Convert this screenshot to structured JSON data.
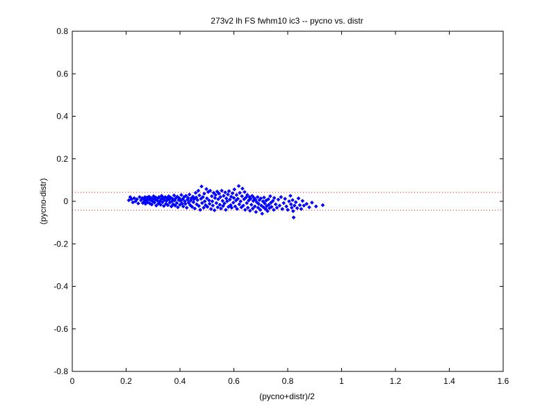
{
  "chart_data": {
    "type": "scatter",
    "title": "273v2 lh FS fwhm10 ic3 -- pycno vs. distr",
    "xlabel": "(pycno+distr)/2",
    "ylabel": "(pycno-distr)",
    "xlim": [
      0,
      1.6
    ],
    "ylim": [
      -0.8,
      0.8
    ],
    "x_ticks": [
      "0",
      "0.2",
      "0.4",
      "0.6",
      "0.8",
      "1",
      "1.2",
      "1.4",
      "1.6"
    ],
    "y_ticks": [
      "-0.8",
      "-0.6",
      "-0.4",
      "-0.2",
      "0",
      "0.2",
      "0.4",
      "0.6",
      "0.8"
    ],
    "grid": false,
    "marker_color": "#0000ff",
    "reference_lines": {
      "color": "#ff0000",
      "style": "dotted",
      "y": [
        0.042,
        -0.042
      ]
    },
    "series": [
      {
        "points": [
          [
            0.21,
            0.005
          ],
          [
            0.215,
            0.02
          ],
          [
            0.22,
            0.01
          ],
          [
            0.225,
            -0.005
          ],
          [
            0.23,
            0.015
          ],
          [
            0.235,
            0.0
          ],
          [
            0.24,
            0.01
          ],
          [
            0.245,
            -0.01
          ],
          [
            0.25,
            0.02
          ],
          [
            0.255,
            0.005
          ],
          [
            0.26,
            0.015
          ],
          [
            0.262,
            -0.008
          ],
          [
            0.265,
            0.012
          ],
          [
            0.268,
            0.0
          ],
          [
            0.27,
            0.02
          ],
          [
            0.272,
            -0.012
          ],
          [
            0.275,
            0.008
          ],
          [
            0.278,
            0.018
          ],
          [
            0.28,
            -0.004
          ],
          [
            0.283,
            0.01
          ],
          [
            0.285,
            0.022
          ],
          [
            0.288,
            -0.01
          ],
          [
            0.29,
            0.006
          ],
          [
            0.292,
            0.016
          ],
          [
            0.295,
            -0.015
          ],
          [
            0.298,
            0.0
          ],
          [
            0.3,
            0.012
          ],
          [
            0.302,
            0.024
          ],
          [
            0.305,
            -0.006
          ],
          [
            0.308,
            0.008
          ],
          [
            0.31,
            0.018
          ],
          [
            0.312,
            -0.02
          ],
          [
            0.315,
            0.004
          ],
          [
            0.318,
            0.014
          ],
          [
            0.32,
            -0.01
          ],
          [
            0.322,
            0.02
          ],
          [
            0.325,
            0.0
          ],
          [
            0.328,
            -0.016
          ],
          [
            0.33,
            0.01
          ],
          [
            0.332,
            0.026
          ],
          [
            0.335,
            -0.004
          ],
          [
            0.338,
            0.016
          ],
          [
            0.34,
            -0.022
          ],
          [
            0.342,
            0.006
          ],
          [
            0.345,
            0.02
          ],
          [
            0.348,
            -0.012
          ],
          [
            0.35,
            0.002
          ],
          [
            0.352,
            0.014
          ],
          [
            0.355,
            -0.018
          ],
          [
            0.358,
            0.024
          ],
          [
            0.36,
            0.008
          ],
          [
            0.362,
            -0.006
          ],
          [
            0.365,
            0.018
          ],
          [
            0.368,
            -0.024
          ],
          [
            0.37,
            0.0
          ],
          [
            0.372,
            0.012
          ],
          [
            0.375,
            -0.014
          ],
          [
            0.378,
            0.028
          ],
          [
            0.38,
            0.004
          ],
          [
            0.382,
            -0.02
          ],
          [
            0.385,
            0.016
          ],
          [
            0.388,
            -0.008
          ],
          [
            0.39,
            0.022
          ],
          [
            0.392,
            -0.028
          ],
          [
            0.395,
            0.006
          ],
          [
            0.398,
            0.014
          ],
          [
            0.4,
            -0.016
          ],
          [
            0.402,
            0.002
          ],
          [
            0.405,
            0.03
          ],
          [
            0.408,
            -0.01
          ],
          [
            0.41,
            0.01
          ],
          [
            0.412,
            -0.024
          ],
          [
            0.415,
            0.02
          ],
          [
            0.418,
            0.0
          ],
          [
            0.42,
            -0.012
          ],
          [
            0.422,
            0.026
          ],
          [
            0.425,
            -0.03
          ],
          [
            0.428,
            0.008
          ],
          [
            0.43,
            0.016
          ],
          [
            0.432,
            -0.006
          ],
          [
            0.435,
            0.032
          ],
          [
            0.438,
            -0.018
          ],
          [
            0.44,
            0.004
          ],
          [
            0.442,
            0.014
          ],
          [
            0.445,
            -0.026
          ],
          [
            0.448,
            0.022
          ],
          [
            0.45,
            -0.004
          ],
          [
            0.452,
            0.01
          ],
          [
            0.455,
            -0.034
          ],
          [
            0.458,
            0.04
          ],
          [
            0.46,
            0.018
          ],
          [
            0.462,
            -0.014
          ],
          [
            0.465,
            0.006
          ],
          [
            0.468,
            0.05
          ],
          [
            0.47,
            -0.022
          ],
          [
            0.472,
            0.028
          ],
          [
            0.475,
            -0.04
          ],
          [
            0.478,
            0.012
          ],
          [
            0.48,
            0.07
          ],
          [
            0.482,
            -0.008
          ],
          [
            0.485,
            0.02
          ],
          [
            0.488,
            -0.03
          ],
          [
            0.49,
            0.036
          ],
          [
            0.492,
            0.0
          ],
          [
            0.495,
            -0.018
          ],
          [
            0.498,
            0.058
          ],
          [
            0.5,
            0.014
          ],
          [
            0.502,
            -0.026
          ],
          [
            0.505,
            0.044
          ],
          [
            0.508,
            0.004
          ],
          [
            0.51,
            -0.012
          ],
          [
            0.512,
            0.05
          ],
          [
            0.515,
            -0.036
          ],
          [
            0.518,
            0.024
          ],
          [
            0.52,
            0.0
          ],
          [
            0.522,
            -0.02
          ],
          [
            0.525,
            0.04
          ],
          [
            0.528,
            -0.042
          ],
          [
            0.53,
            0.016
          ],
          [
            0.532,
            0.03
          ],
          [
            0.535,
            -0.008
          ],
          [
            0.538,
            0.046
          ],
          [
            0.54,
            -0.028
          ],
          [
            0.542,
            0.01
          ],
          [
            0.545,
            0.036
          ],
          [
            0.548,
            -0.016
          ],
          [
            0.55,
            0.02
          ],
          [
            0.552,
            -0.034
          ],
          [
            0.555,
            0.05
          ],
          [
            0.558,
            0.002
          ],
          [
            0.56,
            -0.022
          ],
          [
            0.562,
            0.026
          ],
          [
            0.565,
            -0.01
          ],
          [
            0.568,
            0.042
          ],
          [
            0.57,
            -0.04
          ],
          [
            0.572,
            0.014
          ],
          [
            0.575,
            0.0
          ],
          [
            0.578,
            0.032
          ],
          [
            0.58,
            -0.026
          ],
          [
            0.582,
            0.048
          ],
          [
            0.585,
            0.008
          ],
          [
            0.588,
            -0.018
          ],
          [
            0.59,
            0.022
          ],
          [
            0.592,
            -0.03
          ],
          [
            0.595,
            0.038
          ],
          [
            0.598,
            -0.006
          ],
          [
            0.6,
            0.016
          ],
          [
            0.602,
            0.056
          ],
          [
            0.605,
            -0.024
          ],
          [
            0.608,
            0.004
          ],
          [
            0.61,
            0.03
          ],
          [
            0.612,
            -0.036
          ],
          [
            0.615,
            0.012
          ],
          [
            0.618,
            0.072
          ],
          [
            0.62,
            -0.014
          ],
          [
            0.622,
            0.04
          ],
          [
            0.625,
            0.0
          ],
          [
            0.628,
            -0.028
          ],
          [
            0.63,
            0.024
          ],
          [
            0.632,
            0.06
          ],
          [
            0.635,
            -0.02
          ],
          [
            0.638,
            0.01
          ],
          [
            0.64,
            0.044
          ],
          [
            0.642,
            -0.04
          ],
          [
            0.645,
            0.018
          ],
          [
            0.648,
            -0.008
          ],
          [
            0.65,
            0.03
          ],
          [
            0.652,
            -0.03
          ],
          [
            0.655,
            0.004
          ],
          [
            0.658,
            0.02
          ],
          [
            0.66,
            -0.044
          ],
          [
            0.662,
            0.012
          ],
          [
            0.665,
            -0.016
          ],
          [
            0.668,
            0.026
          ],
          [
            0.67,
            -0.034
          ],
          [
            0.672,
            0.002
          ],
          [
            0.675,
            0.016
          ],
          [
            0.678,
            -0.024
          ],
          [
            0.68,
            0.008
          ],
          [
            0.682,
            -0.05
          ],
          [
            0.685,
            -0.004
          ],
          [
            0.688,
            0.02
          ],
          [
            0.69,
            -0.03
          ],
          [
            0.692,
            -0.012
          ],
          [
            0.695,
            0.006
          ],
          [
            0.698,
            -0.04
          ],
          [
            0.7,
            0.014
          ],
          [
            0.702,
            -0.02
          ],
          [
            0.705,
            -0.058
          ],
          [
            0.708,
            0.0
          ],
          [
            0.71,
            -0.028
          ],
          [
            0.712,
            0.018
          ],
          [
            0.715,
            -0.01
          ],
          [
            0.718,
            -0.036
          ],
          [
            0.72,
            0.004
          ],
          [
            0.722,
            -0.022
          ],
          [
            0.725,
            -0.046
          ],
          [
            0.728,
            0.01
          ],
          [
            0.73,
            -0.016
          ],
          [
            0.732,
            -0.032
          ],
          [
            0.735,
            0.024
          ],
          [
            0.738,
            -0.006
          ],
          [
            0.74,
            -0.026
          ],
          [
            0.745,
            0.002
          ],
          [
            0.748,
            -0.04
          ],
          [
            0.75,
            0.016
          ],
          [
            0.755,
            -0.014
          ],
          [
            0.76,
            -0.03
          ],
          [
            0.765,
            0.008
          ],
          [
            0.77,
            -0.02
          ],
          [
            0.775,
            0.02
          ],
          [
            0.78,
            -0.036
          ],
          [
            0.785,
            -0.008
          ],
          [
            0.79,
            0.012
          ],
          [
            0.795,
            -0.024
          ],
          [
            0.8,
            -0.04
          ],
          [
            0.805,
            0.0
          ],
          [
            0.81,
            0.026
          ],
          [
            0.812,
            -0.014
          ],
          [
            0.815,
            -0.03
          ],
          [
            0.818,
            0.006
          ],
          [
            0.82,
            -0.046
          ],
          [
            0.822,
            -0.076
          ],
          [
            0.825,
            -0.02
          ],
          [
            0.83,
            -0.004
          ],
          [
            0.835,
            -0.032
          ],
          [
            0.84,
            0.014
          ],
          [
            0.845,
            -0.018
          ],
          [
            0.85,
            -0.036
          ],
          [
            0.855,
            0.002
          ],
          [
            0.86,
            -0.02
          ],
          [
            0.87,
            -0.012
          ],
          [
            0.88,
            -0.028
          ],
          [
            0.89,
            -0.006
          ],
          [
            0.905,
            -0.024
          ],
          [
            0.93,
            -0.018
          ]
        ]
      }
    ]
  }
}
